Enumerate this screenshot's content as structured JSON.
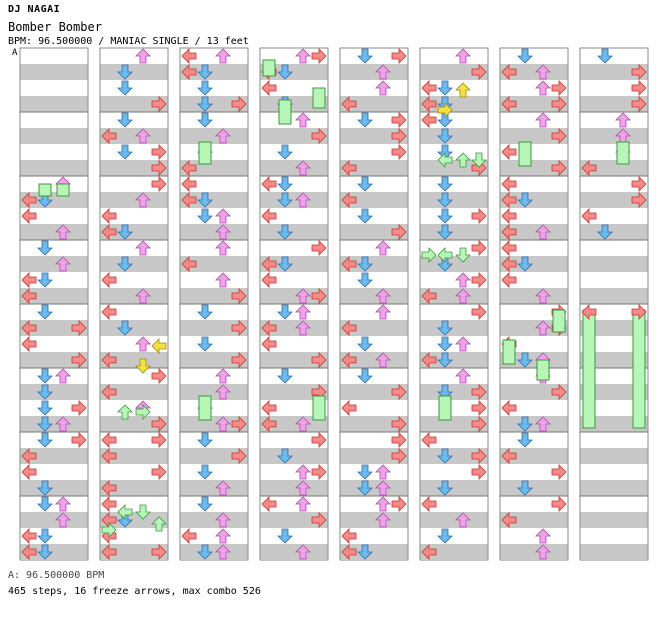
{
  "header": {
    "artist": "DJ NAGAI",
    "title": "Bomber Bomber",
    "meta": "BPM: 96.500000 / MANIAC SINGLE / 13 feet",
    "bpm_marker": "A"
  },
  "footer": {
    "bpm_note": "A: 96.500000 BPM",
    "summary": "465 steps, 16 freeze arrows, max combo 526"
  },
  "colors": {
    "left": "#f48a8a",
    "down": "#6db8ee",
    "up": "#f0a2e8",
    "right": "#f48a8a",
    "freeze": "#b8f5b8",
    "shock": "#f4e040",
    "band": "#c8c8c8"
  },
  "icons": [
    "arrow-left-icon",
    "arrow-down-icon",
    "arrow-up-icon",
    "arrow-right-icon",
    "freeze-arrow-icon"
  ]
}
